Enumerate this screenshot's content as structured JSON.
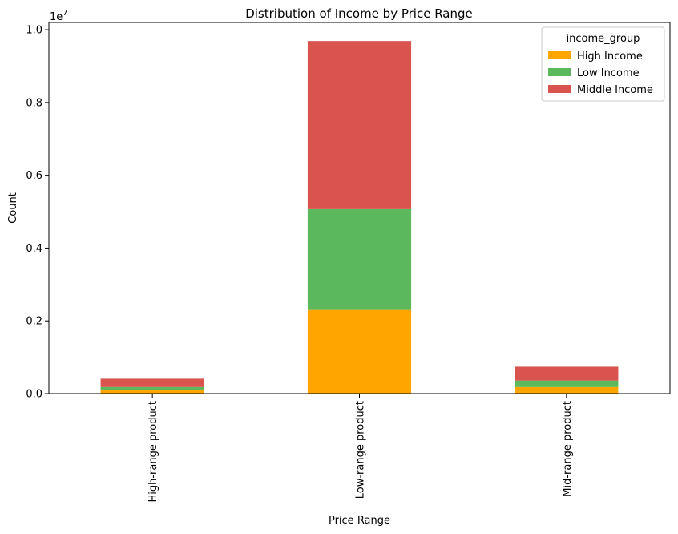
{
  "chart_data": {
    "type": "bar",
    "stacked": true,
    "title": "Distribution of Income by Price Range",
    "xlabel": "Price Range",
    "ylabel": "Count",
    "y_offset_text": "1e7",
    "categories": [
      "High-range product",
      "Low-range product",
      "Mid-range product"
    ],
    "series": [
      {
        "name": "High Income",
        "color": "#ffa500",
        "values": [
          90000,
          2300000,
          180000
        ]
      },
      {
        "name": "Low Income",
        "color": "#5cb85c",
        "values": [
          90000,
          2770000,
          180000
        ]
      },
      {
        "name": "Middle Income",
        "color": "#d9534f",
        "values": [
          230000,
          4620000,
          380000
        ]
      }
    ],
    "ylim": [
      0,
      10200000
    ],
    "yticks": [
      0,
      2000000,
      4000000,
      6000000,
      8000000,
      10000000
    ],
    "ytick_labels": [
      "0.0",
      "0.2",
      "0.4",
      "0.6",
      "0.8",
      "1.0"
    ],
    "legend": {
      "title": "income_group",
      "position": "top-right"
    },
    "grid": false
  }
}
